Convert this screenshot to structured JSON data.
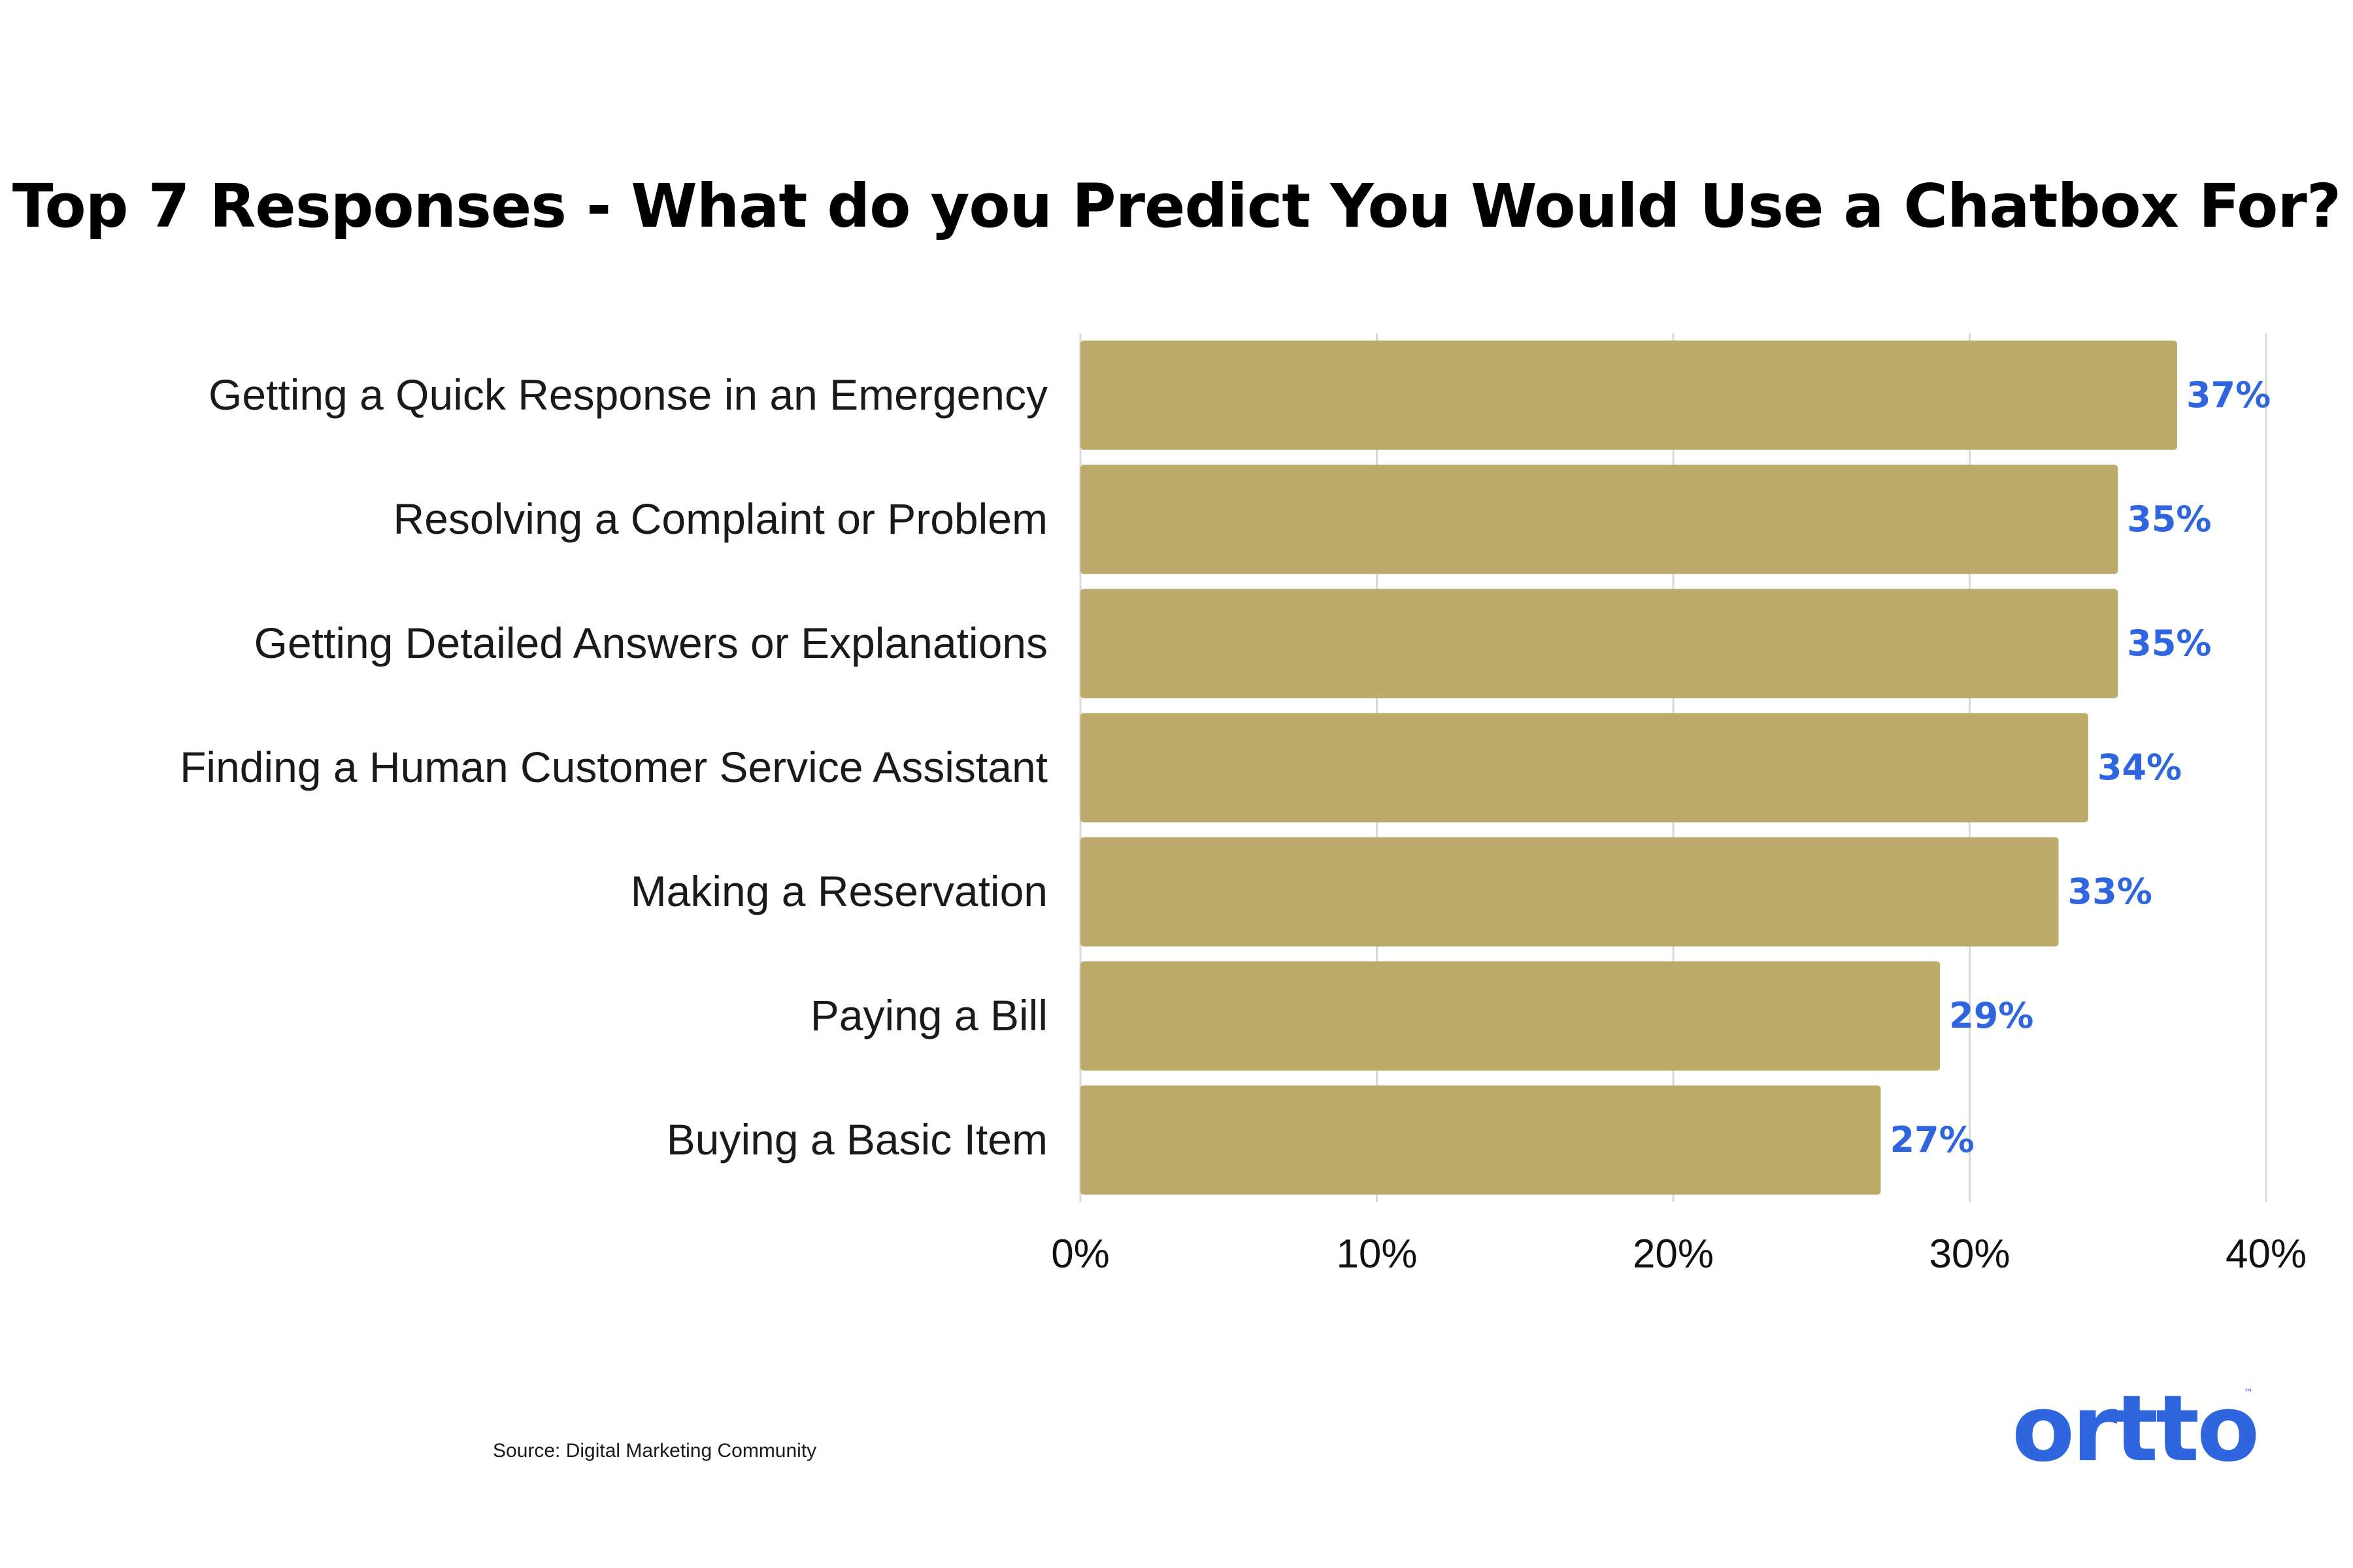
{
  "chart_data": {
    "type": "bar",
    "orientation": "horizontal",
    "title": "Top 7 Responses - What do you Predict You Would Use a Chatbox For?",
    "categories": [
      "Getting a Quick Response in an Emergency",
      "Resolving a Complaint or Problem",
      "Getting Detailed Answers or Explanations",
      "Finding a Human Customer Service Assistant",
      "Making a Reservation",
      "Paying a Bill",
      "Buying a Basic Item"
    ],
    "values": [
      37,
      35,
      35,
      34,
      33,
      29,
      27
    ],
    "data_labels": [
      "37%",
      "35%",
      "35%",
      "34%",
      "33%",
      "29%",
      "27%"
    ],
    "xlim": [
      0,
      40
    ],
    "xticks": [
      0,
      10,
      20,
      30,
      40
    ],
    "xtick_labels": [
      "0%",
      "10%",
      "20%",
      "30%",
      "40%"
    ],
    "xlabel": "",
    "ylabel": "",
    "grid": true,
    "legend": "none"
  },
  "source": "Source: Digital Marketing Community",
  "brand": {
    "name": "ortto",
    "trademark": "™"
  },
  "colors": {
    "bar": "#bcab6a",
    "data_label": "#2f66e0",
    "grid": "#d9d9d9",
    "brand": "#2f66e0"
  }
}
